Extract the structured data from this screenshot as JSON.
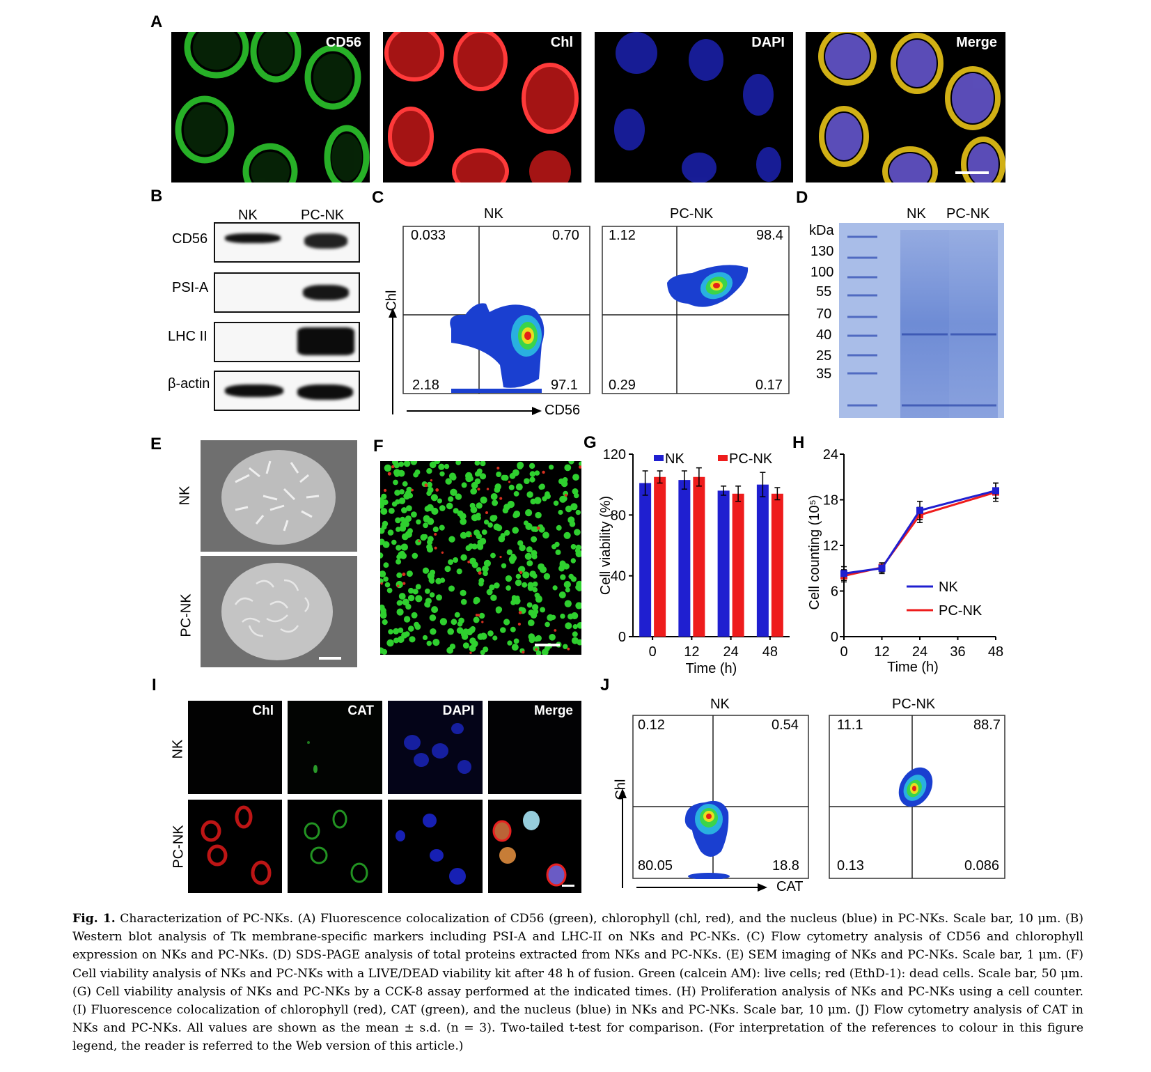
{
  "panels": {
    "A": {
      "label": "A",
      "channels": [
        "CD56",
        "Chl",
        "DAPI",
        "Merge"
      ]
    },
    "B": {
      "label": "B",
      "columns": [
        "NK",
        "PC-NK"
      ],
      "rows": [
        "CD56",
        "PSI-A",
        "LHC II",
        "β-actin"
      ]
    },
    "C": {
      "label": "C",
      "plots": [
        {
          "title": "NK",
          "quadrants": {
            "ul": "0.033",
            "ur": "0.70",
            "ll": "2.18",
            "lr": "97.1"
          }
        },
        {
          "title": "PC-NK",
          "quadrants": {
            "ul": "1.12",
            "ur": "98.4",
            "ll": "0.29",
            "lr": "0.17"
          }
        }
      ],
      "y_axis": "Chl",
      "x_axis": "CD56"
    },
    "D": {
      "label": "D",
      "unit": "kDa",
      "columns": [
        "NK",
        "PC-NK"
      ],
      "markers": [
        "130",
        "100",
        "55",
        "70",
        "40",
        "25",
        "35"
      ]
    },
    "E": {
      "label": "E",
      "rows": [
        "NK",
        "PC-NK"
      ]
    },
    "F": {
      "label": "F"
    },
    "G": {
      "label": "G"
    },
    "H": {
      "label": "H"
    },
    "I": {
      "label": "I",
      "channels": [
        "Chl",
        "CAT",
        "DAPI",
        "Merge"
      ],
      "rows": [
        "NK",
        "PC-NK"
      ]
    },
    "J": {
      "label": "J",
      "plots": [
        {
          "title": "NK",
          "quadrants": {
            "ul": "0.12",
            "ur": "0.54",
            "ll": "80.05",
            "lr": "18.8"
          }
        },
        {
          "title": "PC-NK",
          "quadrants": {
            "ul": "11.1",
            "ur": "88.7",
            "ll": "0.13",
            "lr": "0.086"
          }
        }
      ],
      "y_axis": "Chl",
      "x_axis": "CAT"
    }
  },
  "chart_data": [
    {
      "panel": "G",
      "type": "bar",
      "categories": [
        "0",
        "12",
        "24",
        "48"
      ],
      "series": [
        {
          "name": "NK",
          "color": "#1f1fd0",
          "values": [
            101,
            103,
            96,
            100
          ],
          "errors": [
            8,
            6,
            3,
            8
          ]
        },
        {
          "name": "PC-NK",
          "color": "#ee1c1c",
          "values": [
            105,
            105,
            94,
            94
          ],
          "errors": [
            4,
            6,
            5,
            4
          ]
        }
      ],
      "xlabel": "Time    (h)",
      "ylabel": "Cell viability (%)",
      "ylim": [
        0,
        120
      ],
      "yticks": [
        "0",
        "40",
        "80",
        "120"
      ],
      "legend": "top"
    },
    {
      "panel": "H",
      "type": "line",
      "x": [
        0,
        12,
        24,
        48
      ],
      "xticks": [
        "0",
        "12",
        "24",
        "36",
        "48"
      ],
      "series": [
        {
          "name": "NK",
          "color": "#1f1fd0",
          "values": [
            8.3,
            9.0,
            16.6,
            19.2
          ],
          "errors": [
            0.9,
            0.7,
            1.2,
            1.0
          ]
        },
        {
          "name": "PC-NK",
          "color": "#ee1c1c",
          "values": [
            8.0,
            9.1,
            16.0,
            19.0
          ],
          "errors": [
            0.8,
            0.6,
            1.0,
            1.2
          ]
        }
      ],
      "xlabel": "Time    (h)",
      "ylabel": "Cell counting (10⁵)",
      "ylim": [
        0,
        24
      ],
      "xlim": [
        0,
        48
      ],
      "yticks": [
        "0",
        "6",
        "12",
        "18",
        "24"
      ],
      "legend": "bottom-right"
    }
  ],
  "caption": {
    "fig": "Fig. 1.",
    "text": "Characterization of PC-NKs. (A) Fluorescence colocalization of CD56 (green), chlorophyll (chl, red), and the nucleus (blue) in PC-NKs. Scale bar, 10 μm. (B) Western blot analysis of Tk membrane-specific markers including PSI-A and LHC-II on NKs and PC-NKs. (C) Flow cytometry analysis of CD56 and chlorophyll expression on NKs and PC-NKs. (D) SDS-PAGE analysis of total proteins extracted from NKs and PC-NKs. (E) SEM imaging of NKs and PC-NKs. Scale bar, 1 μm. (F) Cell viability analysis of NKs and PC-NKs with a LIVE/DEAD viability kit after 48 h of fusion. Green (calcein AM): live cells; red (EthD-1): dead cells. Scale bar, 50 μm. (G) Cell viability analysis of NKs and PC-NKs by a CCK-8 assay performed at the indicated times. (H) Proliferation analysis of NKs and PC-NKs using a cell counter. (I) Fluorescence colocalization of chlorophyll (red), CAT (green), and the nucleus (blue) in NKs and PC-NKs. Scale bar, 10 μm. (J) Flow cytometry analysis of CAT in NKs and PC-NKs. All values are shown as the mean ± s.d. (n = 3). Two-tailed t-test for comparison. (For interpretation of the references to colour in this figure legend, the reader is referred to the Web version of this article.)"
  }
}
